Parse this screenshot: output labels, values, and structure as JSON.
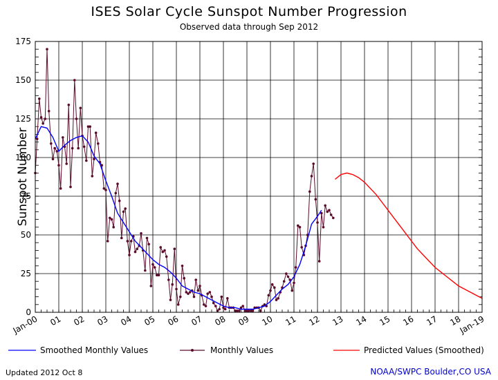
{
  "header": {
    "title": "ISES Solar Cycle Sunspot Number Progression",
    "subtitle": "Observed data through Sep 2012"
  },
  "footer": {
    "updated": "Updated 2012 Oct  8",
    "source": "NOAA/SWPC Boulder,CO USA"
  },
  "colors": {
    "monthly": "#5a0a2a",
    "smoothed": "#0000ff",
    "predicted": "#ff0000",
    "grid": "#000000"
  },
  "chart_data": {
    "type": "line",
    "title": "ISES Solar Cycle Sunspot Number Progression",
    "subtitle": "Observed data through Sep 2012",
    "ylabel": "Sunspot Number",
    "xlabel": "",
    "ylim": [
      0,
      175
    ],
    "yticks": [
      0,
      25,
      50,
      75,
      100,
      125,
      150,
      175
    ],
    "xlim": [
      2000.0,
      2019.0
    ],
    "xtick_labels": [
      "Jan-00",
      "01",
      "02",
      "03",
      "04",
      "05",
      "06",
      "07",
      "08",
      "09",
      "10",
      "11",
      "12",
      "13",
      "14",
      "15",
      "16",
      "17",
      "18",
      "Jan-19"
    ],
    "grid": true,
    "legend": [
      "Smoothed Monthly Values",
      "Monthly Values",
      "Predicted Values (Smoothed)"
    ],
    "series": [
      {
        "name": "Monthly Values",
        "style": "line-with-dots",
        "x": [
          2000.0,
          2000.08,
          2000.17,
          2000.25,
          2000.33,
          2000.42,
          2000.5,
          2000.58,
          2000.67,
          2000.75,
          2000.83,
          2000.92,
          2001.0,
          2001.08,
          2001.17,
          2001.25,
          2001.33,
          2001.42,
          2001.5,
          2001.58,
          2001.67,
          2001.75,
          2001.83,
          2001.92,
          2002.0,
          2002.08,
          2002.17,
          2002.25,
          2002.33,
          2002.42,
          2002.5,
          2002.58,
          2002.67,
          2002.75,
          2002.83,
          2002.92,
          2003.0,
          2003.08,
          2003.17,
          2003.25,
          2003.33,
          2003.42,
          2003.5,
          2003.58,
          2003.67,
          2003.75,
          2003.83,
          2003.92,
          2004.0,
          2004.08,
          2004.17,
          2004.25,
          2004.33,
          2004.42,
          2004.5,
          2004.58,
          2004.67,
          2004.75,
          2004.83,
          2004.92,
          2005.0,
          2005.08,
          2005.17,
          2005.25,
          2005.33,
          2005.42,
          2005.5,
          2005.58,
          2005.67,
          2005.75,
          2005.83,
          2005.92,
          2006.0,
          2006.08,
          2006.17,
          2006.25,
          2006.33,
          2006.42,
          2006.5,
          2006.58,
          2006.67,
          2006.75,
          2006.83,
          2006.92,
          2007.0,
          2007.08,
          2007.17,
          2007.25,
          2007.33,
          2007.42,
          2007.5,
          2007.58,
          2007.67,
          2007.75,
          2007.83,
          2007.92,
          2008.0,
          2008.08,
          2008.17,
          2008.25,
          2008.33,
          2008.42,
          2008.5,
          2008.58,
          2008.67,
          2008.75,
          2008.83,
          2008.92,
          2009.0,
          2009.08,
          2009.17,
          2009.25,
          2009.33,
          2009.42,
          2009.5,
          2009.58,
          2009.67,
          2009.75,
          2009.83,
          2009.92,
          2010.0,
          2010.08,
          2010.17,
          2010.25,
          2010.33,
          2010.42,
          2010.5,
          2010.58,
          2010.67,
          2010.75,
          2010.83,
          2010.92,
          2011.0,
          2011.08,
          2011.17,
          2011.25,
          2011.33,
          2011.42,
          2011.5,
          2011.58,
          2011.67,
          2011.75,
          2011.83,
          2011.92,
          2012.0,
          2012.08,
          2012.17,
          2012.25,
          2012.33,
          2012.42,
          2012.5,
          2012.58,
          2012.67
        ],
        "values": [
          90,
          112,
          138,
          126,
          122,
          125,
          170,
          130,
          109,
          99,
          106,
          104,
          95,
          80,
          113,
          107,
          96,
          134,
          81,
          106,
          150,
          125,
          106,
          132,
          114,
          107,
          98,
          120,
          120,
          88,
          99,
          116,
          109,
          97,
          95,
          80,
          79,
          46,
          61,
          60,
          55,
          77,
          83,
          72,
          48,
          65,
          67,
          46,
          37,
          46,
          49,
          39,
          41,
          43,
          51,
          40,
          27,
          48,
          44,
          17,
          31,
          29,
          24,
          24,
          42,
          39,
          40,
          36,
          21,
          8,
          18,
          41,
          15,
          5,
          10,
          30,
          22,
          13,
          12,
          13,
          14,
          10,
          21,
          14,
          17,
          11,
          5,
          4,
          12,
          13,
          10,
          6,
          4,
          1,
          2,
          10,
          3,
          2,
          9,
          3,
          3,
          3,
          1,
          1,
          1,
          3,
          4,
          1,
          1,
          1,
          1,
          1,
          3,
          3,
          3,
          1,
          4,
          5,
          4,
          11,
          14,
          18,
          16,
          8,
          9,
          13,
          16,
          20,
          25,
          23,
          21,
          14,
          19,
          29,
          56,
          55,
          42,
          37,
          43,
          50,
          78,
          88,
          96,
          73,
          58,
          33,
          64,
          55,
          69,
          65,
          66,
          63,
          61
        ]
      },
      {
        "name": "Smoothed Monthly Values",
        "style": "line",
        "x": [
          2000.0,
          2000.25,
          2000.5,
          2000.75,
          2001.0,
          2001.25,
          2001.5,
          2001.75,
          2002.0,
          2002.25,
          2002.5,
          2002.75,
          2003.0,
          2003.25,
          2003.5,
          2003.75,
          2004.0,
          2004.25,
          2004.5,
          2004.75,
          2005.0,
          2005.25,
          2005.5,
          2005.75,
          2006.0,
          2006.25,
          2006.5,
          2006.75,
          2007.0,
          2007.25,
          2007.5,
          2007.75,
          2008.0,
          2008.25,
          2008.5,
          2008.75,
          2009.0,
          2009.25,
          2009.5,
          2009.75,
          2010.0,
          2010.25,
          2010.5,
          2010.75,
          2011.0,
          2011.25,
          2011.5,
          2011.75,
          2012.0,
          2012.17
        ],
        "values": [
          112,
          120,
          119,
          113,
          104,
          108,
          111,
          113,
          114,
          110,
          101,
          96,
          85,
          75,
          64,
          58,
          52,
          46,
          42,
          38,
          34,
          31,
          29,
          26,
          22,
          17,
          15,
          13,
          12,
          10,
          8,
          6,
          4,
          3,
          3,
          2,
          2,
          2,
          3,
          4,
          7,
          11,
          15,
          18,
          23,
          31,
          43,
          57,
          62,
          66
        ]
      },
      {
        "name": "Predicted Values (Smoothed)",
        "style": "line",
        "x": [
          2012.75,
          2013.0,
          2013.25,
          2013.5,
          2013.75,
          2014.0,
          2014.25,
          2014.5,
          2014.75,
          2015.0,
          2015.25,
          2015.5,
          2015.75,
          2016.0,
          2016.25,
          2016.5,
          2016.75,
          2017.0,
          2017.25,
          2017.5,
          2017.75,
          2018.0,
          2018.25,
          2018.5,
          2018.75,
          2019.0
        ],
        "values": [
          86,
          89,
          90,
          89,
          87,
          84,
          80,
          76,
          71,
          66,
          61,
          56,
          51,
          46,
          41,
          37,
          33,
          29,
          26,
          23,
          20,
          17,
          15,
          13,
          11,
          9
        ]
      }
    ]
  }
}
